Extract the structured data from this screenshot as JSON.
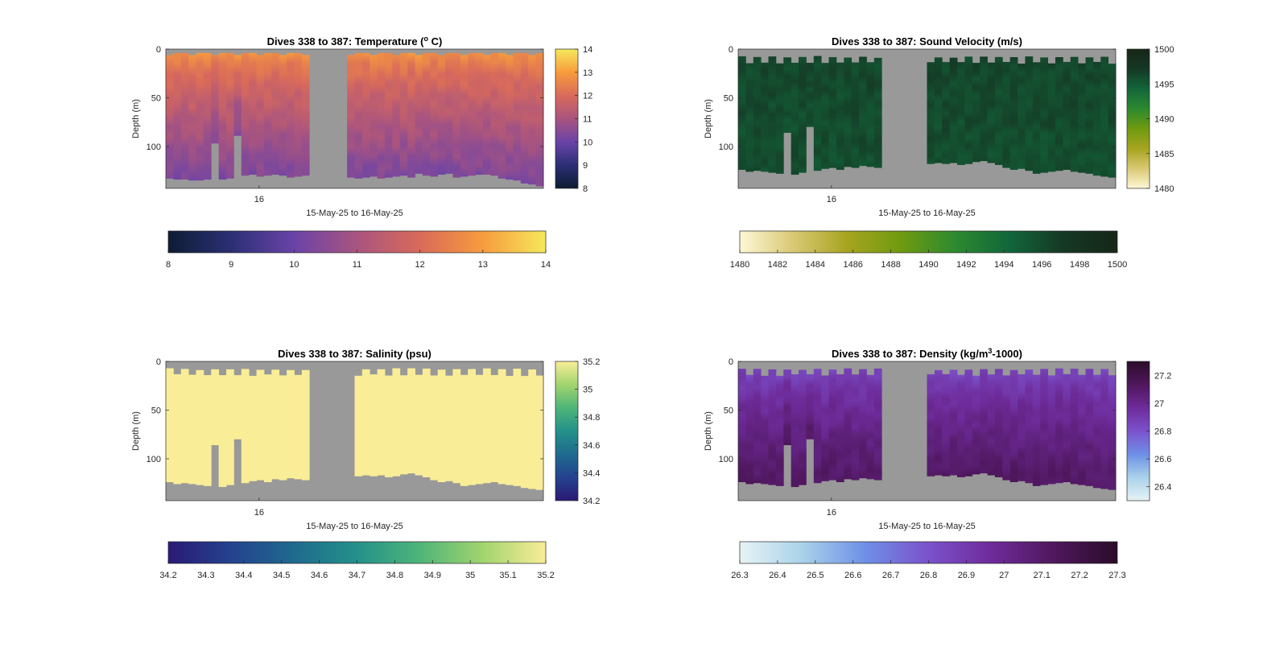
{
  "chart_data": [
    {
      "type": "heatmap",
      "variable": "temperature",
      "title_main": "Dives 338 to 387: Temperature (",
      "title_sup": "o",
      "title_end": " C)",
      "ylabel": "Depth (m)",
      "xlabel": "15-May-25 to 16-May-25",
      "xtick_label": "16",
      "yticks": [
        0,
        50,
        100
      ],
      "ylim": [
        0,
        143
      ],
      "dives": [
        338,
        387
      ],
      "clim": [
        8,
        14
      ],
      "vertical_colorbar_ticks": [
        "8",
        "9",
        "10",
        "11",
        "12",
        "13",
        "14"
      ],
      "horizontal_colorbar_ticks": [
        "8",
        "9",
        "10",
        "11",
        "12",
        "13",
        "14"
      ],
      "colormap": [
        "#0d1d33",
        "#2b2f75",
        "#6a43a8",
        "#a9547f",
        "#d96a5a",
        "#f79c3d",
        "#f5e85c"
      ],
      "surface_value": 12.8,
      "bottom_value": 10.3,
      "top_gap_depth": 4,
      "bottom_depths": [
        133,
        134,
        134,
        135,
        135,
        134,
        97,
        134,
        133,
        89,
        130,
        129,
        131,
        130,
        129,
        130,
        132,
        131,
        130,
        0,
        0,
        0,
        0,
        0,
        132,
        133,
        132,
        131,
        133,
        132,
        131,
        130,
        132,
        128,
        130,
        131,
        129,
        128,
        132,
        131,
        130,
        129,
        129,
        130,
        133,
        134,
        135,
        138,
        139,
        141
      ]
    },
    {
      "type": "heatmap",
      "variable": "sound_velocity",
      "title_main": "Dives 338 to 387: Sound Velocity (m/s)",
      "title_sup": "",
      "title_end": "",
      "ylabel": "Depth (m)",
      "xlabel": "15-May-25 to 16-May-25",
      "xtick_label": "16",
      "yticks": [
        0,
        50,
        100
      ],
      "ylim": [
        0,
        143
      ],
      "dives": [
        338,
        387
      ],
      "clim": [
        1480,
        1500
      ],
      "vertical_colorbar_ticks": [
        "1480",
        "1485",
        "1490",
        "1495",
        "1500"
      ],
      "horizontal_colorbar_ticks": [
        "1480",
        "1482",
        "1484",
        "1486",
        "1488",
        "1490",
        "1492",
        "1494",
        "1496",
        "1498",
        "1500"
      ],
      "colormap": [
        "#fdf8d6",
        "#d9c873",
        "#a6a41f",
        "#6f9a10",
        "#2c8a2f",
        "#12663a",
        "#153825",
        "#172618"
      ],
      "surface_value": 1496.3,
      "bottom_value": 1495.8,
      "top_gap_depth": 14,
      "bottom_depths": [
        124,
        126,
        125,
        126,
        127,
        128,
        86,
        129,
        127,
        80,
        125,
        123,
        122,
        124,
        121,
        122,
        120,
        121,
        122,
        0,
        0,
        0,
        0,
        0,
        0,
        118,
        117,
        118,
        117,
        119,
        118,
        116,
        115,
        117,
        119,
        122,
        124,
        123,
        125,
        128,
        127,
        126,
        125,
        124,
        126,
        127,
        128,
        130,
        131,
        132
      ]
    },
    {
      "type": "heatmap",
      "variable": "salinity",
      "title_main": "Dives 338 to 387: Salinity (psu)",
      "title_sup": "",
      "title_end": "",
      "ylabel": "Depth (m)",
      "xlabel": "15-May-25 to 16-May-25",
      "xtick_label": "16",
      "yticks": [
        0,
        50,
        100
      ],
      "ylim": [
        0,
        143
      ],
      "dives": [
        338,
        387
      ],
      "clim": [
        34.2,
        35.2
      ],
      "vertical_colorbar_ticks": [
        "34.2",
        "34.4",
        "34.6",
        "34.8",
        "35",
        "35.2"
      ],
      "horizontal_colorbar_ticks": [
        "34.2",
        "34.3",
        "34.4",
        "34.5",
        "34.6",
        "34.7",
        "34.8",
        "34.9",
        "35",
        "35.1",
        "35.2"
      ],
      "colormap": [
        "#2a1a75",
        "#24428f",
        "#1f6a8e",
        "#24918a",
        "#4eb578",
        "#a2d46e",
        "#f9ed98"
      ],
      "surface_value": 35.2,
      "bottom_value": 35.2,
      "top_gap_depth": 14,
      "bottom_depths": [
        124,
        126,
        125,
        126,
        127,
        128,
        86,
        129,
        127,
        80,
        125,
        123,
        122,
        124,
        121,
        122,
        120,
        121,
        122,
        0,
        0,
        0,
        0,
        0,
        0,
        118,
        117,
        118,
        117,
        119,
        118,
        116,
        115,
        117,
        119,
        122,
        124,
        123,
        125,
        128,
        127,
        126,
        125,
        124,
        126,
        127,
        128,
        130,
        131,
        132
      ]
    },
    {
      "type": "heatmap",
      "variable": "density",
      "title_main": "Dives 338 to 387: Density (kg/m",
      "title_sup": "3",
      "title_end": "-1000)",
      "ylabel": "Depth (m)",
      "xlabel": "15-May-25 to 16-May-25",
      "xtick_label": "16",
      "yticks": [
        0,
        50,
        100
      ],
      "ylim": [
        0,
        143
      ],
      "dives": [
        338,
        387
      ],
      "clim": [
        26.3,
        27.3
      ],
      "vertical_colorbar_ticks": [
        "26.4",
        "26.6",
        "26.8",
        "27",
        "27.2"
      ],
      "horizontal_colorbar_ticks": [
        "26.3",
        "26.4",
        "26.5",
        "26.6",
        "26.7",
        "26.8",
        "26.9",
        "27",
        "27.1",
        "27.2",
        "27.3"
      ],
      "colormap": [
        "#e7f3f5",
        "#a9d2ea",
        "#6e8fe6",
        "#7b52cc",
        "#6e2b9a",
        "#4f175d",
        "#2a0c29"
      ],
      "surface_value": 26.85,
      "bottom_value": 27.12,
      "top_gap_depth": 14,
      "bottom_depths": [
        124,
        126,
        125,
        126,
        127,
        128,
        86,
        129,
        127,
        80,
        125,
        123,
        122,
        124,
        121,
        122,
        120,
        121,
        122,
        0,
        0,
        0,
        0,
        0,
        0,
        118,
        117,
        118,
        117,
        119,
        118,
        116,
        115,
        117,
        119,
        122,
        124,
        123,
        125,
        128,
        127,
        126,
        125,
        124,
        126,
        127,
        128,
        130,
        131,
        132
      ],
      "gap_color": "#999999"
    }
  ],
  "colors": {
    "missing": "#999999",
    "axis": "#262626"
  }
}
